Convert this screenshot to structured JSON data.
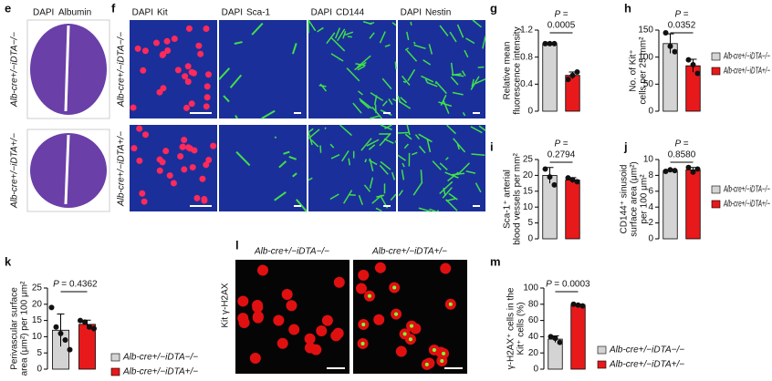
{
  "image_panels": {
    "e": {
      "panel": "e",
      "header": [
        "DAPI",
        "Albumin"
      ],
      "rows": [
        "Alb-cre+/−iDTA−/−",
        "Alb-cre+/−iDTA+/−"
      ]
    },
    "f": {
      "panel": "f",
      "headers": [
        [
          "DAPI",
          "Kit"
        ],
        [
          "DAPI",
          "Sca-1"
        ],
        [
          "DAPI",
          "CD144"
        ],
        [
          "DAPI",
          "Nestin"
        ]
      ],
      "rows": [
        "Alb-cre+/−iDTA−/−",
        "Alb-cre+/−iDTA+/−"
      ]
    },
    "l": {
      "panel": "l",
      "headers": [
        "Alb-cre+/−iDTA−/−",
        "Alb-cre+/−iDTA+/−"
      ],
      "side": [
        "Kit",
        "γ-H2AX"
      ]
    }
  },
  "chart_data": [
    {
      "type": "bar",
      "panel": "g",
      "ylabel": [
        "Relative mean",
        "fluorescence intensity"
      ],
      "ylim": [
        0,
        1.2
      ],
      "yticks": [
        0,
        0.4,
        0.8,
        1.2
      ],
      "p_label": "P =",
      "p_value": "0.0005",
      "series": [
        {
          "name": "Alb-cre+/−iDTA−/−",
          "color": "#d4d4d4",
          "values": [
            1.0
          ],
          "errors": [
            0.01
          ],
          "points": [
            1.0,
            1.0,
            1.0
          ]
        },
        {
          "name": "Alb-cre+/−iDTA+/−",
          "color": "#e8191b",
          "values": [
            0.53
          ],
          "errors": [
            0.05
          ],
          "points": [
            0.47,
            0.53,
            0.58
          ]
        }
      ]
    },
    {
      "type": "bar",
      "panel": "h",
      "ylabel": [
        "No. of Kit⁺",
        "cells per 25 mm²"
      ],
      "ylim": [
        0,
        150
      ],
      "yticks": [
        0,
        50,
        100,
        150
      ],
      "p_label": "P =",
      "p_value": "0.0352",
      "legend": true,
      "series": [
        {
          "name": "Alb-cre+/−iDTA−/−",
          "color": "#d4d4d4",
          "values": [
            125
          ],
          "errors": [
            18
          ],
          "points": [
            145,
            120,
            110
          ]
        },
        {
          "name": "Alb-cre+/−iDTA+/−",
          "color": "#e8191b",
          "values": [
            84
          ],
          "errors": [
            12
          ],
          "points": [
            95,
            86,
            70
          ]
        }
      ]
    },
    {
      "type": "bar",
      "panel": "i",
      "ylabel": [
        "Sca-1⁺ arterial",
        "blood vessels per mm²"
      ],
      "ylim": [
        0,
        25
      ],
      "yticks": [
        0,
        5,
        10,
        15,
        20,
        25
      ],
      "p_label": "P =",
      "p_value": "0.2794",
      "series": [
        {
          "name": "Alb-cre+/−iDTA−/−",
          "color": "#d4d4d4",
          "values": [
            20
          ],
          "errors": [
            2.5
          ],
          "points": [
            22,
            19.5,
            17
          ]
        },
        {
          "name": "Alb-cre+/−iDTA+/−",
          "color": "#e8191b",
          "values": [
            18.5
          ],
          "errors": [
            0.8
          ],
          "points": [
            19.2,
            18.6,
            18
          ]
        }
      ]
    },
    {
      "type": "bar",
      "panel": "j",
      "ylabel": [
        "CD144⁺ sinusoid",
        "surface area (μm²)",
        "per 100 μm²"
      ],
      "ylim": [
        0,
        10
      ],
      "yticks": [
        0,
        2,
        4,
        6,
        8,
        10
      ],
      "p_label": "P =",
      "p_value": "0.8580",
      "legend": true,
      "series": [
        {
          "name": "Alb-cre+/−iDTA−/−",
          "color": "#d4d4d4",
          "values": [
            8.6
          ],
          "errors": [
            0.1
          ],
          "points": [
            8.5,
            8.7,
            8.6
          ]
        },
        {
          "name": "Alb-cre+/−iDTA+/−",
          "color": "#e8191b",
          "values": [
            8.7
          ],
          "errors": [
            0.3
          ],
          "points": [
            9.0,
            8.4,
            8.8
          ]
        }
      ]
    },
    {
      "type": "bar",
      "panel": "k",
      "ylabel": [
        "Perivascular surface",
        "area (μm²) per 100 μm²"
      ],
      "ylim": [
        0,
        25
      ],
      "yticks": [
        0,
        5,
        10,
        15,
        20,
        25
      ],
      "p_label": "P =",
      "p_value": "0.4362",
      "legend": true,
      "series": [
        {
          "name": "Alb-cre+/−iDTA−/−",
          "color": "#d4d4d4",
          "values": [
            12
          ],
          "errors": [
            5
          ],
          "points": [
            19,
            13,
            11,
            9,
            6
          ]
        },
        {
          "name": "Alb-cre+/−iDTA+/−",
          "color": "#e8191b",
          "values": [
            13.8
          ],
          "errors": [
            1.3
          ],
          "points": [
            15,
            14.5,
            13,
            12.5
          ]
        }
      ]
    },
    {
      "type": "bar",
      "panel": "m",
      "ylabel": [
        "γ-H2AX⁺ cells in the",
        "Kit⁺ cells (%)"
      ],
      "ylim": [
        0,
        100
      ],
      "yticks": [
        0,
        20,
        40,
        60,
        80,
        100
      ],
      "p_label": "P =",
      "p_value": "0.0003",
      "legend": true,
      "series": [
        {
          "name": "Alb-cre+/−iDTA−/−",
          "color": "#d4d4d4",
          "values": [
            37
          ],
          "errors": [
            4
          ],
          "points": [
            40,
            38,
            33
          ]
        },
        {
          "name": "Alb-cre+/−iDTA+/−",
          "color": "#e8191b",
          "values": [
            79
          ],
          "errors": [
            1
          ],
          "points": [
            80,
            79,
            78
          ]
        }
      ]
    }
  ]
}
